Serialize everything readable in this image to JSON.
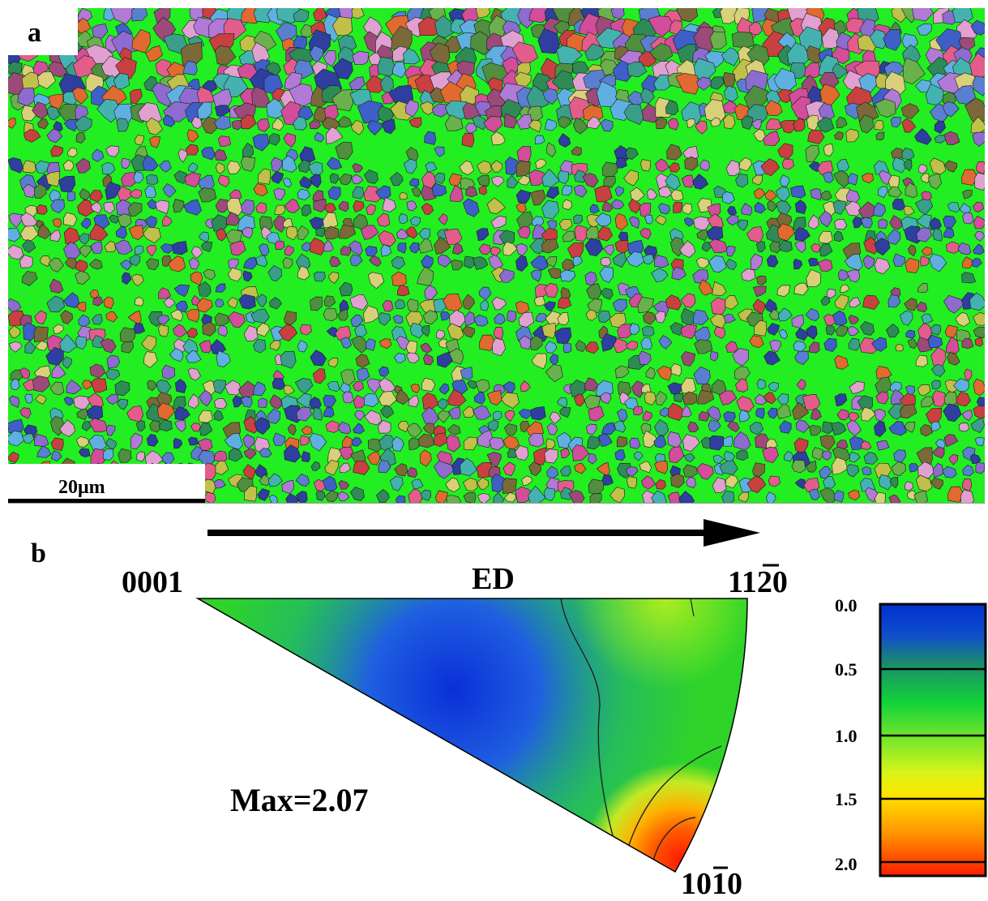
{
  "panel_a": {
    "label": "a",
    "scale_bar": "20μm",
    "colors": {
      "boundary_phase": "#22ee22",
      "grain_palette": [
        "#d24d9a",
        "#3f5fc8",
        "#2e8b57",
        "#e06a30",
        "#8e6ccf",
        "#44b3b0",
        "#9c4a7a",
        "#6ab04c",
        "#c0c04a",
        "#5a7fd0",
        "#e35d8c",
        "#7a6a3a",
        "#3a9e8a",
        "#b07ad6",
        "#d9d07a",
        "#2f3f9f",
        "#e0a0d0",
        "#4f8f3f",
        "#c94040",
        "#5fb0e0"
      ]
    }
  },
  "panel_b": {
    "label": "b",
    "arrow_label": "ED",
    "corner_labels": {
      "left": "0001",
      "right_main": "11",
      "right_bar": "2",
      "right_tail": "0",
      "bottom_main": "10",
      "bottom_bar": "1",
      "bottom_tail": "0"
    },
    "max_text": "Max=2.07",
    "legend": {
      "ticks": [
        "0.0",
        "0.5",
        "1.0",
        "1.5",
        "2.0"
      ],
      "range": [
        0.0,
        2.07
      ],
      "colors": [
        "#0030d0",
        "#20a060",
        "#10d020",
        "#c8f010",
        "#ffe600",
        "#ff9a00",
        "#ff2000"
      ]
    }
  }
}
